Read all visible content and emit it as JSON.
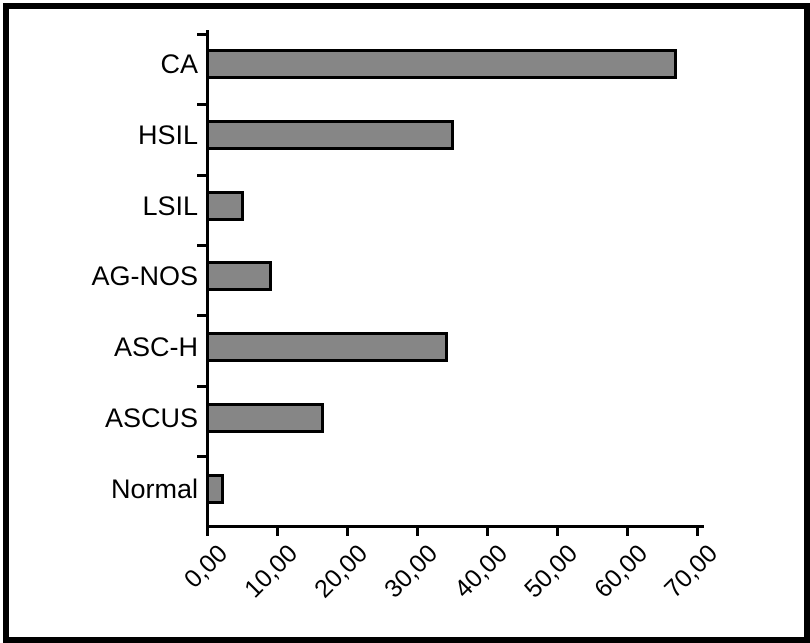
{
  "figure": {
    "title": "",
    "background_color": "#ffffff",
    "frame_color": "#000000"
  },
  "chart_data": {
    "type": "bar",
    "orientation": "horizontal",
    "title": "",
    "xlabel": "",
    "ylabel": "",
    "grid": false,
    "legend": null,
    "categories": [
      "CA",
      "HSIL",
      "LSIL",
      "AG-NOS",
      "ASC-H",
      "ASCUS",
      "Normal"
    ],
    "values": [
      66.9,
      35.0,
      5.0,
      9.0,
      34.1,
      16.4,
      2.1
    ],
    "x_ticks": [
      0,
      10,
      20,
      30,
      40,
      50,
      60,
      70
    ],
    "x_tick_labels": [
      "0,00",
      "10,00",
      "20,00",
      "30,00",
      "40,00",
      "50,00",
      "60,00",
      "70,00"
    ],
    "xlim": [
      0,
      70
    ],
    "bar_color": "#868686",
    "bar_border_color": "#000000",
    "axis_color": "#000000"
  }
}
